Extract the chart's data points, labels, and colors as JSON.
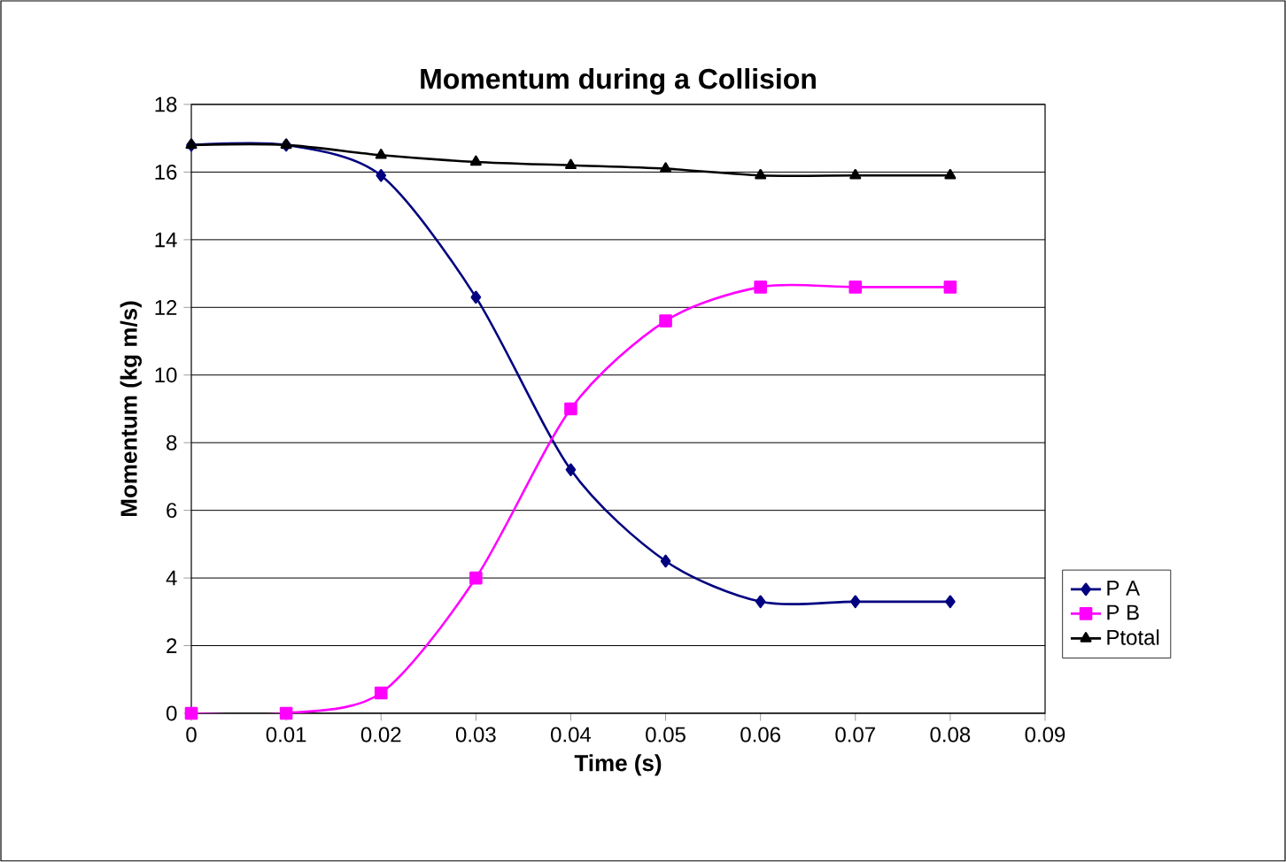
{
  "chart_data": {
    "type": "line",
    "title": "Momentum during a Collision",
    "xlabel": "Time (s)",
    "ylabel": "Momentum (kg m/s)",
    "x": [
      0,
      0.01,
      0.02,
      0.03,
      0.04,
      0.05,
      0.06,
      0.07,
      0.08
    ],
    "series": [
      {
        "name": "P A",
        "color": "#000080",
        "marker": "diamond",
        "values": [
          16.8,
          16.8,
          15.9,
          12.3,
          7.2,
          4.5,
          3.3,
          3.3,
          3.3
        ]
      },
      {
        "name": "P B",
        "color": "#ff00ff",
        "marker": "square",
        "values": [
          0,
          0,
          0.6,
          4.0,
          9.0,
          11.6,
          12.6,
          12.6,
          12.6
        ]
      },
      {
        "name": "Ptotal",
        "color": "#000000",
        "marker": "triangle",
        "values": [
          16.8,
          16.8,
          16.5,
          16.3,
          16.2,
          16.1,
          15.9,
          15.9,
          15.9
        ]
      }
    ],
    "xlim": [
      0,
      0.09
    ],
    "xticks": [
      0,
      0.01,
      0.02,
      0.03,
      0.04,
      0.05,
      0.06,
      0.07,
      0.08,
      0.09
    ],
    "ylim": [
      0,
      18
    ],
    "yticks": [
      0,
      2,
      4,
      6,
      8,
      10,
      12,
      14,
      16,
      18
    ],
    "grid": "y",
    "legend": "right"
  }
}
